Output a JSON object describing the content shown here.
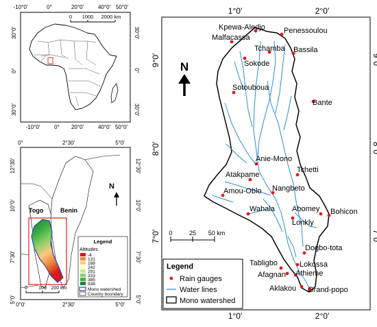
{
  "africa_panel": {
    "top_ticks": [
      "-10°0′",
      "0°",
      "20°0′",
      "40°0′",
      "50°0′"
    ],
    "bottom_ticks": [
      "-10°0′",
      "0°",
      "20°0′",
      "40°0′",
      "50°0′"
    ],
    "left_ticks": [
      "30°0′",
      "0°",
      "30°0′"
    ],
    "right_ticks": [
      "30°0′",
      "0°",
      "30°0′"
    ],
    "scale_labels": [
      "0",
      "1000",
      "2000 km"
    ]
  },
  "region_panel": {
    "top_ticks": [
      "0°",
      "2°30′",
      "5°0′"
    ],
    "bottom_ticks": [
      "0°0′",
      "2°30′",
      "5°0′"
    ],
    "left_ticks": [
      "12°30′",
      "10°0′",
      "7°30′",
      "5°0′"
    ],
    "right_ticks": [
      "12°30′",
      "10°0′",
      "7°30′",
      "5°0′"
    ],
    "country_togo": "Togo",
    "country_benin": "Benin",
    "north_label": "N",
    "scale_labels": [
      "0",
      "100",
      "200 km"
    ],
    "legend": {
      "title": "Legend",
      "altitudes_title": "Altitudes",
      "altitude_classes": [
        {
          "label": "-4",
          "color": "#d7191c"
        },
        {
          "label": "131",
          "color": "#ef8a3a"
        },
        {
          "label": "188",
          "color": "#fdc980"
        },
        {
          "label": "242",
          "color": "#ffffbf"
        },
        {
          "label": "291",
          "color": "#c7e9a0"
        },
        {
          "label": "333",
          "color": "#8fd16a"
        },
        {
          "label": "385",
          "color": "#3fae46"
        },
        {
          "label": "938",
          "color": "#1a7f3a"
        }
      ],
      "mono_watershed": "Mono watershed",
      "country_boundary": "Country boundary"
    }
  },
  "main_map": {
    "top_ticks": [
      "1°0′",
      "2°0′"
    ],
    "bottom_ticks": [
      "1°0′",
      "2°0′"
    ],
    "left_ticks": [
      "9°0′",
      "8°0′",
      "7°0′"
    ],
    "right_ticks": [
      "9°0′",
      "8°0′",
      "7°0′"
    ],
    "north_label": "N",
    "scale_labels": [
      "0",
      "25",
      "50 km"
    ],
    "rain_gauges": [
      "Kpewa-Aledjo",
      "Penessoulou",
      "Malfacassa",
      "Tchamba",
      "Bassila",
      "Sokode",
      "Sotouboua",
      "Bante",
      "Anie-Mono",
      "Tchetti",
      "Atakpame",
      "Amou-Oblo",
      "Nangbeto",
      "Wahala",
      "Abomey",
      "Bohicon",
      "Lonkly",
      "Dogbo-tota",
      "Tabligbo",
      "Lokossa",
      "Afagnan",
      "Athieme",
      "Aklakou",
      "Grand-popo"
    ],
    "legend": {
      "title": "Legend",
      "rain_gauges": "Rain gauges",
      "water_lines": "Water lines",
      "mono_watershed": "Mono watershed"
    },
    "colors": {
      "gauge": "#e41a1c",
      "water": "#2b8cd9",
      "outline": "#000000"
    }
  }
}
